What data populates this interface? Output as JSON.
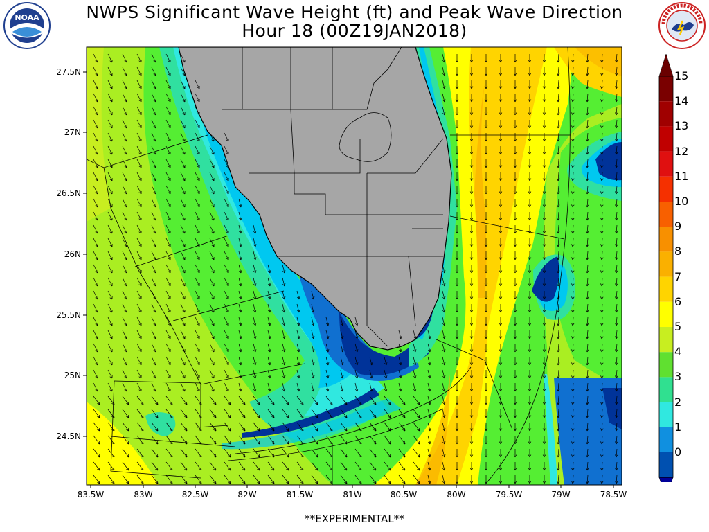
{
  "title_line1": "NWPS Significant Wave Height (ft) and Peak Wave Direction",
  "title_line2": "Hour 18 (00Z19JAN2018)",
  "footer": "**EXPERIMENTAL**",
  "logos": {
    "left": {
      "name": "noaa-logo",
      "text": "NOAA"
    },
    "right": {
      "name": "nws-logo",
      "text": "NATIONAL WEATHER SERVICE"
    }
  },
  "lat_labels": [
    "27.5N",
    "27N",
    "26.5N",
    "26N",
    "25.5N",
    "25N",
    "24.5N"
  ],
  "lon_labels": [
    "83.5W",
    "83W",
    "82.5W",
    "82W",
    "81.5W",
    "81W",
    "80.5W",
    "80W",
    "79.5W",
    "79W",
    "78.5W"
  ],
  "colorbar": {
    "labels": [
      "15",
      "14",
      "13",
      "12",
      "11",
      "10",
      "9",
      "8",
      "7",
      "6",
      "5",
      "4",
      "3",
      "2",
      "1",
      "0"
    ],
    "colors": [
      "#7a0000",
      "#a00000",
      "#c00000",
      "#e01010",
      "#f53000",
      "#f86000",
      "#f89000",
      "#fab000",
      "#ffd400",
      "#ffff00",
      "#c8ee20",
      "#60e030",
      "#30e090",
      "#30e8e0",
      "#1090e0",
      "#0050b0"
    ],
    "top_color": "#6a0000",
    "bottom_color": "#000099"
  },
  "colors": {
    "land": "#a6a6a6",
    "wave_0_1": "#003399",
    "wave_1_2": "#00c8f0",
    "wave_2_3": "#30f0c0",
    "wave_3_4": "#33e070",
    "wave_4_5": "#55ee33",
    "wave_5_6": "#aaee22",
    "wave_6_7": "#ffff00",
    "wave_7_8": "#ffd000"
  }
}
